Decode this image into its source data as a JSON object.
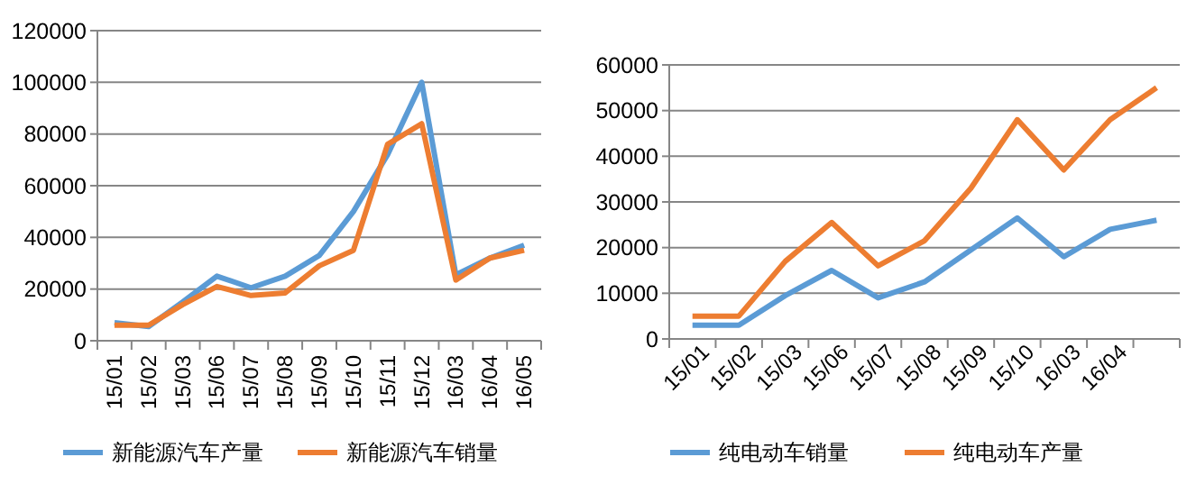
{
  "chart_data": [
    {
      "type": "line",
      "categories": [
        "15/01",
        "15/02",
        "15/03",
        "15/06",
        "15/07",
        "15/08",
        "15/09",
        "15/10",
        "15/11",
        "15/12",
        "16/03",
        "16/04",
        "16/05"
      ],
      "series": [
        {
          "name": "新能源汽车产量",
          "color": "#5b9bd5",
          "values": [
            7000,
            5500,
            15000,
            25000,
            20500,
            25000,
            33000,
            50000,
            72000,
            100000,
            25500,
            32000,
            37000
          ]
        },
        {
          "name": "新能源汽车销量",
          "color": "#ed7d31",
          "values": [
            6000,
            6000,
            14000,
            21000,
            17500,
            18500,
            29000,
            35000,
            76000,
            84000,
            23500,
            32000,
            35000
          ]
        }
      ],
      "ylim": [
        0,
        120000
      ],
      "yticks": [
        0,
        20000,
        40000,
        60000,
        80000,
        100000,
        120000
      ],
      "grid": "y",
      "legend": "bottom",
      "marker": "none"
    },
    {
      "type": "line",
      "categories": [
        "15/01",
        "15/02",
        "15/03",
        "15/06",
        "15/07",
        "15/08",
        "15/09",
        "15/10",
        "16/03",
        "16/04",
        null
      ],
      "series": [
        {
          "name": "纯电动车销量",
          "color": "#5b9bd5",
          "values": [
            3000,
            3000,
            9500,
            15000,
            9000,
            12500,
            19500,
            26500,
            18000,
            24000,
            26000
          ]
        },
        {
          "name": "纯电动车产量",
          "color": "#ed7d31",
          "values": [
            5000,
            5000,
            17000,
            25500,
            16000,
            21500,
            33000,
            48000,
            37000,
            48000,
            55000
          ]
        }
      ],
      "ylim": [
        0,
        60000
      ],
      "yticks": [
        0,
        10000,
        20000,
        30000,
        40000,
        50000,
        60000
      ],
      "grid": "y",
      "legend": "bottom",
      "marker": "none"
    }
  ]
}
